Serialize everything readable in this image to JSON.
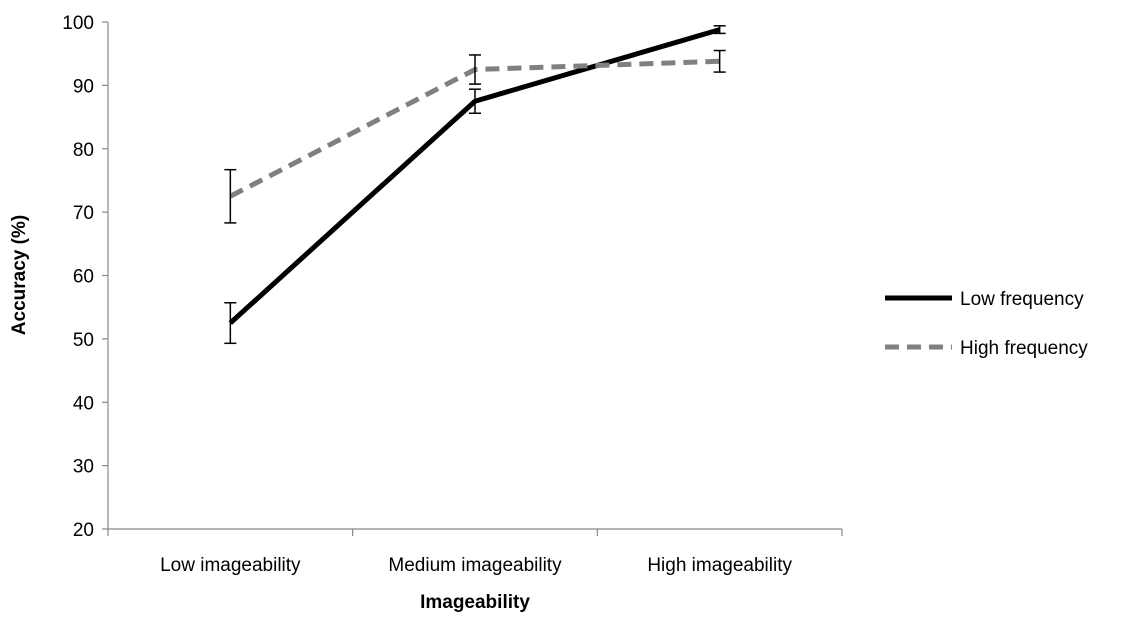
{
  "chart_data": {
    "type": "line",
    "title": "",
    "xlabel": "Imageability",
    "ylabel": "Accuracy (%)",
    "categories": [
      "Low imageability",
      "Medium imageability",
      "High imageability"
    ],
    "ylim": [
      20,
      100
    ],
    "yticks": [
      "20",
      "30",
      "40",
      "50",
      "60",
      "70",
      "80",
      "90",
      "100"
    ],
    "grid": false,
    "legend_position": "right",
    "series": [
      {
        "name": "Low frequency",
        "values": [
          52.5,
          87.5,
          98.8
        ],
        "error": [
          3.2,
          1.9,
          0.6
        ],
        "color": "#000000",
        "style": "solid"
      },
      {
        "name": "High frequency",
        "values": [
          72.5,
          92.5,
          93.8
        ],
        "error": [
          4.2,
          2.3,
          1.7
        ],
        "color": "#808080",
        "style": "dashed"
      }
    ]
  }
}
